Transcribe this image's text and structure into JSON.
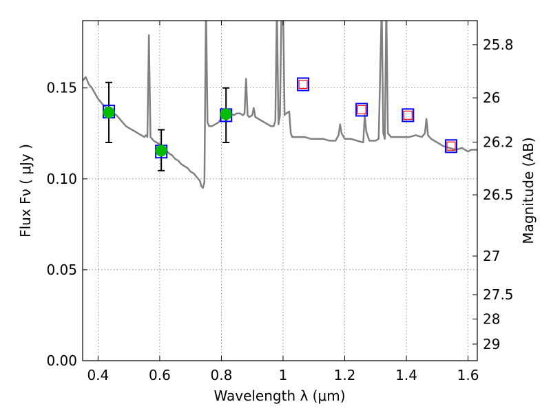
{
  "chart_data": {
    "type": "scatter",
    "xlabel": "Wavelength  λ (μm)",
    "ylabel": "Flux  Fν  ( μJy )",
    "ylabel_right": "Magnitude (AB)",
    "xlim": [
      0.35,
      1.63
    ],
    "ylim": [
      0.0,
      0.187
    ],
    "grid": true,
    "colors": {
      "spectrum": "#808080",
      "measured_fill": "#00bb00",
      "model_box": "#0000ff",
      "upper_limit_inner": "#ff0000",
      "errorbar": "#000000"
    },
    "x_ticks": [
      {
        "value": 0.4,
        "label": "0.4"
      },
      {
        "value": 0.6,
        "label": "0.6"
      },
      {
        "value": 0.8,
        "label": "0.8"
      },
      {
        "value": 1.0,
        "label": "1"
      },
      {
        "value": 1.2,
        "label": "1.2"
      },
      {
        "value": 1.4,
        "label": "1.4"
      },
      {
        "value": 1.6,
        "label": "1.6"
      }
    ],
    "y_ticks": [
      {
        "value": 0.0,
        "label": "0.00"
      },
      {
        "value": 0.05,
        "label": "0.05"
      },
      {
        "value": 0.1,
        "label": "0.10"
      },
      {
        "value": 0.15,
        "label": "0.15"
      }
    ],
    "mag_ticks": [
      {
        "label": "25.8",
        "mag": 25.8
      },
      {
        "label": "26",
        "mag": 26.0
      },
      {
        "label": "26.2",
        "mag": 26.2
      },
      {
        "label": "26.5",
        "mag": 26.5
      },
      {
        "label": "27",
        "mag": 27.0
      },
      {
        "label": "27.5",
        "mag": 27.5
      },
      {
        "label": "28",
        "mag": 28.0
      },
      {
        "label": "29",
        "mag": 29.0
      }
    ],
    "series": [
      {
        "kind": "spectrum",
        "points": [
          [
            0.35,
            0.154
          ],
          [
            0.36,
            0.156
          ],
          [
            0.37,
            0.152
          ],
          [
            0.38,
            0.15
          ],
          [
            0.39,
            0.147
          ],
          [
            0.4,
            0.144
          ],
          [
            0.41,
            0.142
          ],
          [
            0.42,
            0.14
          ],
          [
            0.43,
            0.139
          ],
          [
            0.44,
            0.137
          ],
          [
            0.45,
            0.136
          ],
          [
            0.46,
            0.135
          ],
          [
            0.47,
            0.133
          ],
          [
            0.48,
            0.131
          ],
          [
            0.49,
            0.129
          ],
          [
            0.5,
            0.128
          ],
          [
            0.51,
            0.127
          ],
          [
            0.52,
            0.126
          ],
          [
            0.53,
            0.125
          ],
          [
            0.54,
            0.124
          ],
          [
            0.55,
            0.123
          ],
          [
            0.555,
            0.124
          ],
          [
            0.56,
            0.123
          ],
          [
            0.565,
            0.179
          ],
          [
            0.57,
            0.123
          ],
          [
            0.58,
            0.121
          ],
          [
            0.59,
            0.12
          ],
          [
            0.6,
            0.119
          ],
          [
            0.61,
            0.118
          ],
          [
            0.62,
            0.116
          ],
          [
            0.63,
            0.114
          ],
          [
            0.64,
            0.113
          ],
          [
            0.65,
            0.111
          ],
          [
            0.66,
            0.11
          ],
          [
            0.67,
            0.108
          ],
          [
            0.68,
            0.107
          ],
          [
            0.69,
            0.106
          ],
          [
            0.7,
            0.104
          ],
          [
            0.71,
            0.103
          ],
          [
            0.72,
            0.101
          ],
          [
            0.73,
            0.099
          ],
          [
            0.735,
            0.096
          ],
          [
            0.74,
            0.095
          ],
          [
            0.745,
            0.098
          ],
          [
            0.75,
            0.195
          ],
          [
            0.755,
            0.131
          ],
          [
            0.76,
            0.129
          ],
          [
            0.77,
            0.129
          ],
          [
            0.78,
            0.13
          ],
          [
            0.79,
            0.131
          ],
          [
            0.8,
            0.133
          ],
          [
            0.81,
            0.134
          ],
          [
            0.82,
            0.135
          ],
          [
            0.83,
            0.136
          ],
          [
            0.84,
            0.135
          ],
          [
            0.85,
            0.136
          ],
          [
            0.86,
            0.136
          ],
          [
            0.87,
            0.135
          ],
          [
            0.875,
            0.136
          ],
          [
            0.88,
            0.155
          ],
          [
            0.885,
            0.135
          ],
          [
            0.89,
            0.134
          ],
          [
            0.9,
            0.135
          ],
          [
            0.905,
            0.139
          ],
          [
            0.91,
            0.134
          ],
          [
            0.92,
            0.133
          ],
          [
            0.93,
            0.132
          ],
          [
            0.94,
            0.131
          ],
          [
            0.95,
            0.13
          ],
          [
            0.96,
            0.129
          ],
          [
            0.97,
            0.129
          ],
          [
            0.975,
            0.132
          ],
          [
            0.98,
            0.195
          ],
          [
            0.985,
            0.13
          ],
          [
            0.99,
            0.135
          ],
          [
            0.995,
            0.195
          ],
          [
            1.0,
            0.195
          ],
          [
            1.005,
            0.135
          ],
          [
            1.01,
            0.136
          ],
          [
            1.02,
            0.137
          ],
          [
            1.025,
            0.125
          ],
          [
            1.03,
            0.123
          ],
          [
            1.05,
            0.123
          ],
          [
            1.07,
            0.123
          ],
          [
            1.09,
            0.122
          ],
          [
            1.11,
            0.122
          ],
          [
            1.13,
            0.122
          ],
          [
            1.15,
            0.121
          ],
          [
            1.17,
            0.121
          ],
          [
            1.18,
            0.124
          ],
          [
            1.185,
            0.13
          ],
          [
            1.19,
            0.125
          ],
          [
            1.2,
            0.122
          ],
          [
            1.22,
            0.122
          ],
          [
            1.24,
            0.121
          ],
          [
            1.26,
            0.12
          ],
          [
            1.265,
            0.135
          ],
          [
            1.27,
            0.126
          ],
          [
            1.28,
            0.121
          ],
          [
            1.3,
            0.121
          ],
          [
            1.31,
            0.122
          ],
          [
            1.32,
            0.195
          ],
          [
            1.325,
            0.125
          ],
          [
            1.33,
            0.122
          ],
          [
            1.335,
            0.195
          ],
          [
            1.34,
            0.125
          ],
          [
            1.35,
            0.123
          ],
          [
            1.37,
            0.123
          ],
          [
            1.39,
            0.123
          ],
          [
            1.41,
            0.123
          ],
          [
            1.43,
            0.124
          ],
          [
            1.45,
            0.123
          ],
          [
            1.46,
            0.125
          ],
          [
            1.465,
            0.133
          ],
          [
            1.47,
            0.124
          ],
          [
            1.48,
            0.122
          ],
          [
            1.5,
            0.12
          ],
          [
            1.52,
            0.118
          ],
          [
            1.54,
            0.117
          ],
          [
            1.56,
            0.116
          ],
          [
            1.58,
            0.117
          ],
          [
            1.6,
            0.115
          ],
          [
            1.61,
            0.116
          ],
          [
            1.63,
            0.116
          ]
        ]
      },
      {
        "kind": "measured",
        "points": [
          {
            "x": 0.435,
            "y": 0.1365,
            "err_low": 0.0165,
            "err_high": 0.0165
          },
          {
            "x": 0.605,
            "y": 0.1155,
            "err_low": 0.011,
            "err_high": 0.0115
          },
          {
            "x": 0.815,
            "y": 0.1355,
            "err_low": 0.0155,
            "err_high": 0.0145
          }
        ]
      },
      {
        "kind": "model_photometry",
        "points": [
          {
            "x": 0.435,
            "y": 0.137
          },
          {
            "x": 0.605,
            "y": 0.115
          },
          {
            "x": 0.815,
            "y": 0.135
          },
          {
            "x": 1.065,
            "y": 0.152
          },
          {
            "x": 1.255,
            "y": 0.138
          },
          {
            "x": 1.405,
            "y": 0.135
          },
          {
            "x": 1.545,
            "y": 0.118
          }
        ]
      },
      {
        "kind": "upper_limit",
        "points": [
          {
            "x": 1.065,
            "y": 0.152
          },
          {
            "x": 1.255,
            "y": 0.138
          },
          {
            "x": 1.405,
            "y": 0.135
          },
          {
            "x": 1.545,
            "y": 0.118
          }
        ]
      }
    ]
  }
}
